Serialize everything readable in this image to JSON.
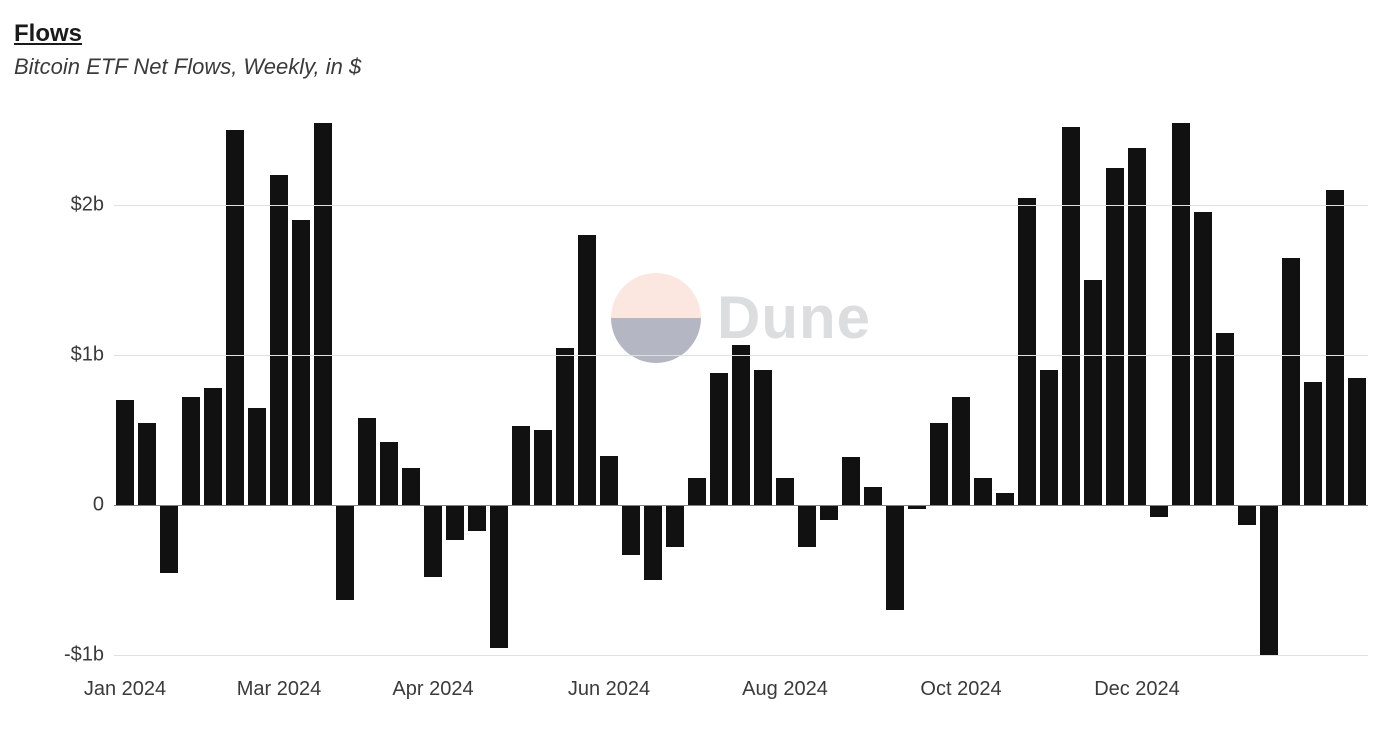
{
  "header": {
    "title": "Flows",
    "subtitle": "Bitcoin ETF Net Flows, Weekly, in $"
  },
  "watermark": {
    "text": "Dune",
    "logo_top_color": "#f5b8a9",
    "logo_bottom_color": "#2a3556"
  },
  "flows_chart": {
    "type": "bar",
    "bar_color": "#111111",
    "background_color": "#ffffff",
    "grid_color": "#e0e0e0",
    "zero_line_color": "#808080",
    "label_color": "#3a3a3a",
    "label_fontsize": 20,
    "title_fontsize": 24,
    "subtitle_fontsize": 22,
    "bar_width_ratio": 0.78,
    "ylim_min": -1.1,
    "ylim_max": 2.7,
    "y_ticks": [
      {
        "value": -1,
        "label": "-$1b"
      },
      {
        "value": 0,
        "label": "0"
      },
      {
        "value": 1,
        "label": "$1b"
      },
      {
        "value": 2,
        "label": "$2b"
      }
    ],
    "x_ticks": [
      {
        "index": 0,
        "label": "Jan 2024"
      },
      {
        "index": 7,
        "label": "Mar 2024"
      },
      {
        "index": 14,
        "label": "Apr 2024"
      },
      {
        "index": 22,
        "label": "Jun 2024"
      },
      {
        "index": 30,
        "label": "Aug 2024"
      },
      {
        "index": 38,
        "label": "Oct 2024"
      },
      {
        "index": 46,
        "label": "Dec 2024"
      }
    ],
    "values": [
      0.7,
      0.55,
      -0.45,
      0.72,
      0.78,
      2.5,
      0.65,
      2.2,
      1.9,
      2.55,
      -0.63,
      0.58,
      0.42,
      0.25,
      -0.48,
      -0.23,
      -0.17,
      -0.95,
      0.53,
      0.5,
      1.05,
      1.8,
      0.33,
      -0.33,
      -0.5,
      -0.28,
      0.18,
      0.88,
      1.07,
      0.9,
      0.18,
      -0.28,
      -0.1,
      0.32,
      0.12,
      -0.7,
      -0.03,
      0.55,
      0.72,
      0.18,
      0.08,
      2.05,
      0.9,
      2.52,
      1.5,
      2.25,
      2.38,
      -0.08,
      2.55,
      1.95,
      1.15,
      -0.13,
      -1.0,
      1.65,
      0.82,
      2.1,
      0.85
    ]
  }
}
